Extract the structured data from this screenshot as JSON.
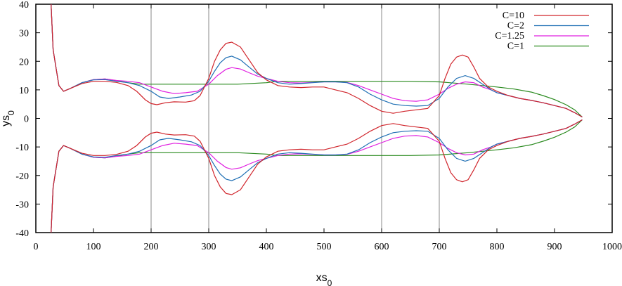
{
  "chart_data": {
    "type": "line",
    "xlabel": "xs0",
    "ylabel": "ys0",
    "xlim": [
      0,
      1000
    ],
    "ylim": [
      -40,
      40
    ],
    "xticks": [
      0,
      100,
      200,
      300,
      400,
      500,
      600,
      700,
      800,
      900,
      1000
    ],
    "yticks": [
      -40,
      -30,
      -20,
      -10,
      0,
      10,
      20,
      30,
      40
    ],
    "vertical_lines": [
      200,
      300,
      600,
      700
    ],
    "legend_position": "top-right",
    "series": [
      {
        "name": "C=10",
        "color": "#d0242b",
        "upper": [
          [
            26,
            42
          ],
          [
            30,
            24
          ],
          [
            40,
            11.5
          ],
          [
            48,
            9.5
          ],
          [
            60,
            10.5
          ],
          [
            80,
            12.2
          ],
          [
            100,
            13
          ],
          [
            120,
            13
          ],
          [
            140,
            12.6
          ],
          [
            160,
            11.5
          ],
          [
            175,
            9.5
          ],
          [
            190,
            6.5
          ],
          [
            200,
            5.2
          ],
          [
            210,
            4.8
          ],
          [
            225,
            5.5
          ],
          [
            240,
            5.8
          ],
          [
            260,
            5.7
          ],
          [
            275,
            6.2
          ],
          [
            285,
            8
          ],
          [
            300,
            14
          ],
          [
            310,
            20
          ],
          [
            320,
            24
          ],
          [
            330,
            26.3
          ],
          [
            340,
            26.7
          ],
          [
            355,
            25
          ],
          [
            370,
            20.5
          ],
          [
            385,
            16
          ],
          [
            400,
            13.5
          ],
          [
            420,
            11.5
          ],
          [
            440,
            11
          ],
          [
            460,
            10.8
          ],
          [
            480,
            11
          ],
          [
            500,
            11
          ],
          [
            520,
            10
          ],
          [
            540,
            9
          ],
          [
            560,
            7
          ],
          [
            580,
            4.5
          ],
          [
            600,
            2.5
          ],
          [
            620,
            1.8
          ],
          [
            640,
            2.5
          ],
          [
            660,
            3
          ],
          [
            680,
            3.5
          ],
          [
            700,
            8
          ],
          [
            710,
            14
          ],
          [
            720,
            19
          ],
          [
            730,
            21.5
          ],
          [
            740,
            22.2
          ],
          [
            750,
            21.5
          ],
          [
            760,
            18
          ],
          [
            770,
            14
          ],
          [
            785,
            11
          ],
          [
            800,
            9.5
          ],
          [
            820,
            8
          ],
          [
            840,
            7
          ],
          [
            860,
            6.3
          ],
          [
            880,
            5.5
          ],
          [
            900,
            4.5
          ],
          [
            920,
            3.5
          ],
          [
            935,
            2
          ],
          [
            948,
            0.5
          ]
        ]
      },
      {
        "name": "C=2",
        "color": "#1f6fb4",
        "upper": [
          [
            26,
            42
          ],
          [
            30,
            24
          ],
          [
            40,
            11.5
          ],
          [
            48,
            9.5
          ],
          [
            60,
            10.5
          ],
          [
            80,
            12.5
          ],
          [
            100,
            13.5
          ],
          [
            120,
            13.6
          ],
          [
            140,
            13
          ],
          [
            160,
            12.5
          ],
          [
            180,
            11.5
          ],
          [
            200,
            9.5
          ],
          [
            215,
            7.5
          ],
          [
            230,
            7
          ],
          [
            250,
            7.5
          ],
          [
            270,
            8.2
          ],
          [
            285,
            9.5
          ],
          [
            300,
            13
          ],
          [
            310,
            16.5
          ],
          [
            320,
            19.5
          ],
          [
            330,
            21.3
          ],
          [
            340,
            21.8
          ],
          [
            355,
            20.5
          ],
          [
            370,
            18
          ],
          [
            385,
            15.5
          ],
          [
            400,
            14
          ],
          [
            420,
            12.5
          ],
          [
            440,
            12
          ],
          [
            460,
            12.2
          ],
          [
            480,
            12.5
          ],
          [
            500,
            12.8
          ],
          [
            520,
            12.8
          ],
          [
            540,
            12.5
          ],
          [
            560,
            11
          ],
          [
            580,
            8.5
          ],
          [
            600,
            6.5
          ],
          [
            620,
            5
          ],
          [
            640,
            4.5
          ],
          [
            660,
            4.3
          ],
          [
            680,
            4.5
          ],
          [
            700,
            7
          ],
          [
            715,
            11
          ],
          [
            730,
            14
          ],
          [
            745,
            15
          ],
          [
            760,
            14
          ],
          [
            775,
            12
          ],
          [
            790,
            10
          ],
          [
            800,
            9
          ],
          [
            820,
            8
          ],
          [
            840,
            7
          ],
          [
            860,
            6.3
          ],
          [
            880,
            5.5
          ],
          [
            900,
            4.5
          ],
          [
            920,
            3.5
          ],
          [
            935,
            2
          ],
          [
            948,
            0.5
          ]
        ]
      },
      {
        "name": "C=1.25",
        "color": "#e020e0",
        "upper": [
          [
            26,
            42
          ],
          [
            30,
            24
          ],
          [
            40,
            11.5
          ],
          [
            48,
            9.5
          ],
          [
            60,
            10.5
          ],
          [
            80,
            12.5
          ],
          [
            100,
            13.6
          ],
          [
            120,
            13.8
          ],
          [
            140,
            13.3
          ],
          [
            160,
            13
          ],
          [
            180,
            12.5
          ],
          [
            200,
            11
          ],
          [
            220,
            9.5
          ],
          [
            240,
            8.7
          ],
          [
            260,
            9
          ],
          [
            280,
            9.5
          ],
          [
            300,
            12
          ],
          [
            315,
            15
          ],
          [
            330,
            17.2
          ],
          [
            340,
            17.8
          ],
          [
            355,
            17.3
          ],
          [
            370,
            16
          ],
          [
            385,
            14.8
          ],
          [
            400,
            14
          ],
          [
            420,
            13
          ],
          [
            440,
            12.5
          ],
          [
            460,
            12.4
          ],
          [
            480,
            12.6
          ],
          [
            500,
            12.8
          ],
          [
            520,
            12.8
          ],
          [
            540,
            12.6
          ],
          [
            560,
            11.5
          ],
          [
            580,
            10
          ],
          [
            600,
            8.5
          ],
          [
            620,
            7
          ],
          [
            640,
            6.2
          ],
          [
            660,
            6
          ],
          [
            680,
            6.5
          ],
          [
            700,
            8.5
          ],
          [
            715,
            10.5
          ],
          [
            730,
            12
          ],
          [
            745,
            12.8
          ],
          [
            760,
            12.5
          ],
          [
            775,
            11
          ],
          [
            790,
            10
          ],
          [
            800,
            9
          ],
          [
            820,
            8
          ],
          [
            840,
            7
          ],
          [
            860,
            6.3
          ],
          [
            880,
            5.5
          ],
          [
            900,
            4.5
          ],
          [
            920,
            3.5
          ],
          [
            935,
            2
          ],
          [
            948,
            0.5
          ]
        ]
      },
      {
        "name": "C=1",
        "color": "#2a8a1f",
        "upper": [
          [
            26,
            42
          ],
          [
            30,
            24
          ],
          [
            40,
            11.5
          ],
          [
            48,
            9.5
          ],
          [
            60,
            10.5
          ],
          [
            80,
            12.5
          ],
          [
            100,
            13.6
          ],
          [
            120,
            13.8
          ],
          [
            140,
            13.2
          ],
          [
            160,
            12.5
          ],
          [
            180,
            12
          ],
          [
            200,
            12
          ],
          [
            250,
            12
          ],
          [
            300,
            12
          ],
          [
            350,
            12
          ],
          [
            400,
            12.5
          ],
          [
            420,
            13
          ],
          [
            450,
            13
          ],
          [
            500,
            13
          ],
          [
            550,
            13
          ],
          [
            600,
            13
          ],
          [
            650,
            13
          ],
          [
            700,
            12.8
          ],
          [
            750,
            12
          ],
          [
            800,
            11
          ],
          [
            830,
            10.3
          ],
          [
            860,
            9.2
          ],
          [
            880,
            8
          ],
          [
            900,
            6.6
          ],
          [
            920,
            4.8
          ],
          [
            935,
            3
          ],
          [
            948,
            0.5
          ]
        ]
      }
    ]
  }
}
